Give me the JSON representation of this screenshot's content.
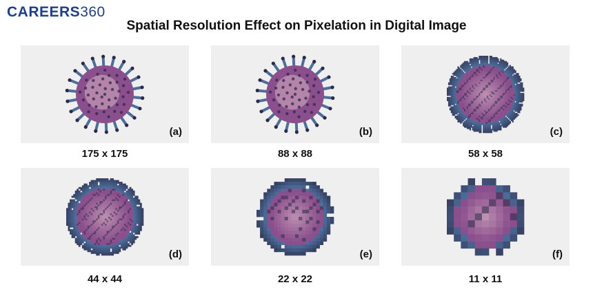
{
  "brand": {
    "name": "CAREERS",
    "number": "360",
    "color": "#1f3f8a"
  },
  "title": "Spatial Resolution Effect on Pixelation in Digital Image",
  "panels": [
    {
      "tag": "(a)",
      "caption": "175 x 175",
      "resolution": 175
    },
    {
      "tag": "(b)",
      "caption": "88 x 88",
      "resolution": 88
    },
    {
      "tag": "(c)",
      "caption": "58 x 58",
      "resolution": 58
    },
    {
      "tag": "(d)",
      "caption": "44 x 44",
      "resolution": 44
    },
    {
      "tag": "(e)",
      "caption": "22 x 22",
      "resolution": 22
    },
    {
      "tag": "(f)",
      "caption": "11 x 11",
      "resolution": 11
    }
  ],
  "colors": {
    "panel_bg": "#efefef",
    "virus_body": "#8a4f8c",
    "virus_light": "#c69bb8",
    "virus_dark": "#2d2a48",
    "spike": "#4c6f9c"
  }
}
